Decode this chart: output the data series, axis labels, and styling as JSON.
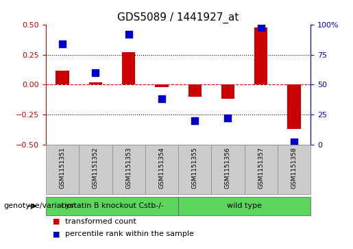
{
  "title": "GDS5089 / 1441927_at",
  "samples": [
    "GSM1151351",
    "GSM1151352",
    "GSM1151353",
    "GSM1151354",
    "GSM1151355",
    "GSM1151356",
    "GSM1151357",
    "GSM1151358"
  ],
  "red_values": [
    0.12,
    0.02,
    0.27,
    -0.02,
    -0.1,
    -0.12,
    0.48,
    -0.37
  ],
  "blue_percent": [
    84,
    60,
    92,
    38,
    20,
    22,
    98,
    2
  ],
  "groups": [
    {
      "label": "cystatin B knockout Cstb-/-",
      "start": 0,
      "end": 4,
      "color": "#5cd65c"
    },
    {
      "label": "wild type",
      "start": 4,
      "end": 8,
      "color": "#5cd65c"
    }
  ],
  "group_row_label": "genotype/variation",
  "legend_red": "transformed count",
  "legend_blue": "percentile rank within the sample",
  "ylim_left": [
    -0.5,
    0.5
  ],
  "ylim_right": [
    0,
    100
  ],
  "yticks_left": [
    -0.5,
    -0.25,
    0,
    0.25,
    0.5
  ],
  "yticks_right": [
    0,
    25,
    50,
    75,
    100
  ],
  "red_color": "#cc0000",
  "blue_color": "#0000cc",
  "bar_width": 0.4,
  "dot_size": 45,
  "sample_box_color": "#cccccc",
  "fig_width": 5.15,
  "fig_height": 3.63
}
